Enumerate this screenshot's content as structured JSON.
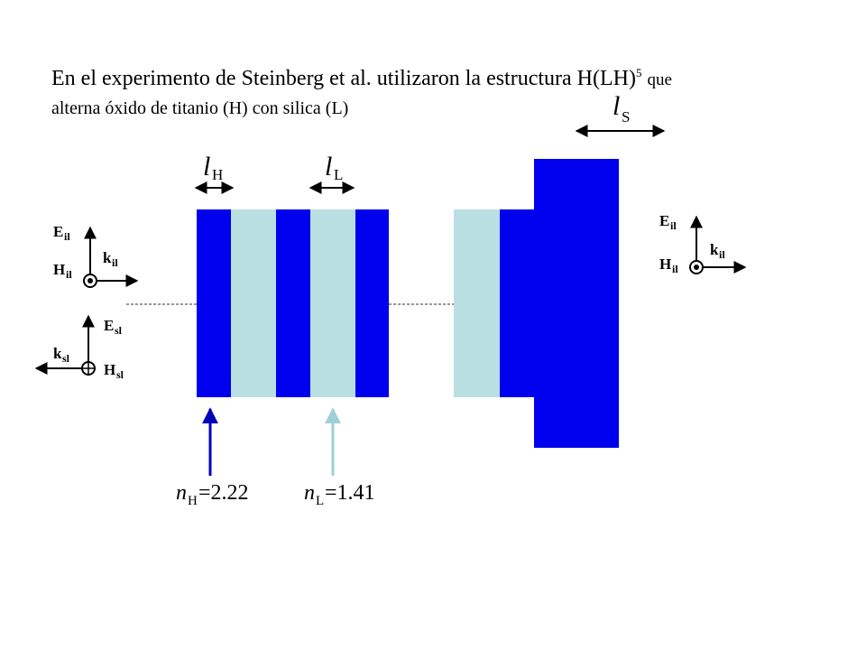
{
  "title": {
    "line1_main": "En el experimento de Steinberg et al. utilizaron la estructura H(LH)",
    "line1_sup": "5",
    "line1_end": "que",
    "line2": "alterna óxido de titanio (H) con silica (L)"
  },
  "labels": {
    "l_symbol": "l",
    "sub_H": "H",
    "sub_L": "L",
    "sub_S": "S",
    "n_symbol": "n",
    "nH_value": "=2.22",
    "nL_value": "=1.41"
  },
  "fields": {
    "E": "E",
    "H": "H",
    "k": "k",
    "incident_sub": "il",
    "reflected_sub": "sl"
  },
  "colors": {
    "high_index": "#0000ee",
    "low_index": "#b9dfe3",
    "nL_arrow": "#9fd0d6",
    "nH_arrow": "#0000bb"
  }
}
